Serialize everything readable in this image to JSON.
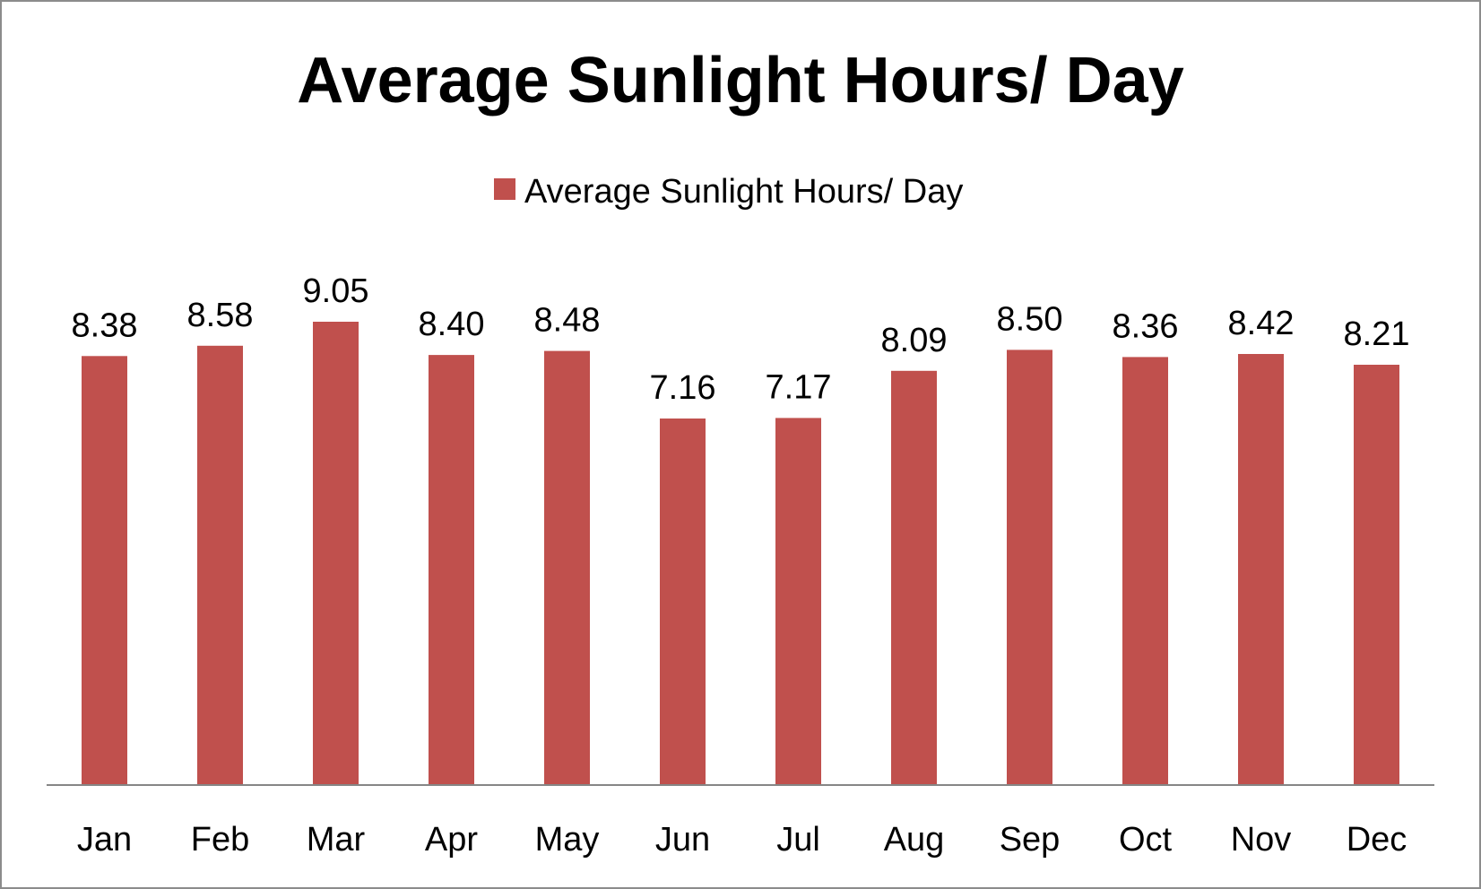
{
  "chart_data": {
    "type": "bar",
    "title": "Average Sunlight Hours/ Day",
    "xlabel": "",
    "ylabel": "",
    "categories": [
      "Jan",
      "Feb",
      "Mar",
      "Apr",
      "May",
      "Jun",
      "Jul",
      "Aug",
      "Sep",
      "Oct",
      "Nov",
      "Dec"
    ],
    "series": [
      {
        "name": "Average Sunlight Hours/ Day",
        "values": [
          8.38,
          8.58,
          9.05,
          8.4,
          8.48,
          7.16,
          7.17,
          8.09,
          8.5,
          8.36,
          8.42,
          8.21
        ],
        "labels": [
          "8.38",
          "8.58",
          "9.05",
          "8.40",
          "8.48",
          "7.16",
          "7.17",
          "8.09",
          "8.50",
          "8.36",
          "8.42",
          "8.21"
        ],
        "color": "#c0504d"
      }
    ],
    "ylim": [
      0,
      9.05
    ],
    "grid": false,
    "legend_position": "top",
    "data_labels": true
  },
  "colors": {
    "bar": "#c0504d",
    "axis": "#868686",
    "border": "#8c8c8c",
    "text": "#000000",
    "background": "#ffffff"
  }
}
